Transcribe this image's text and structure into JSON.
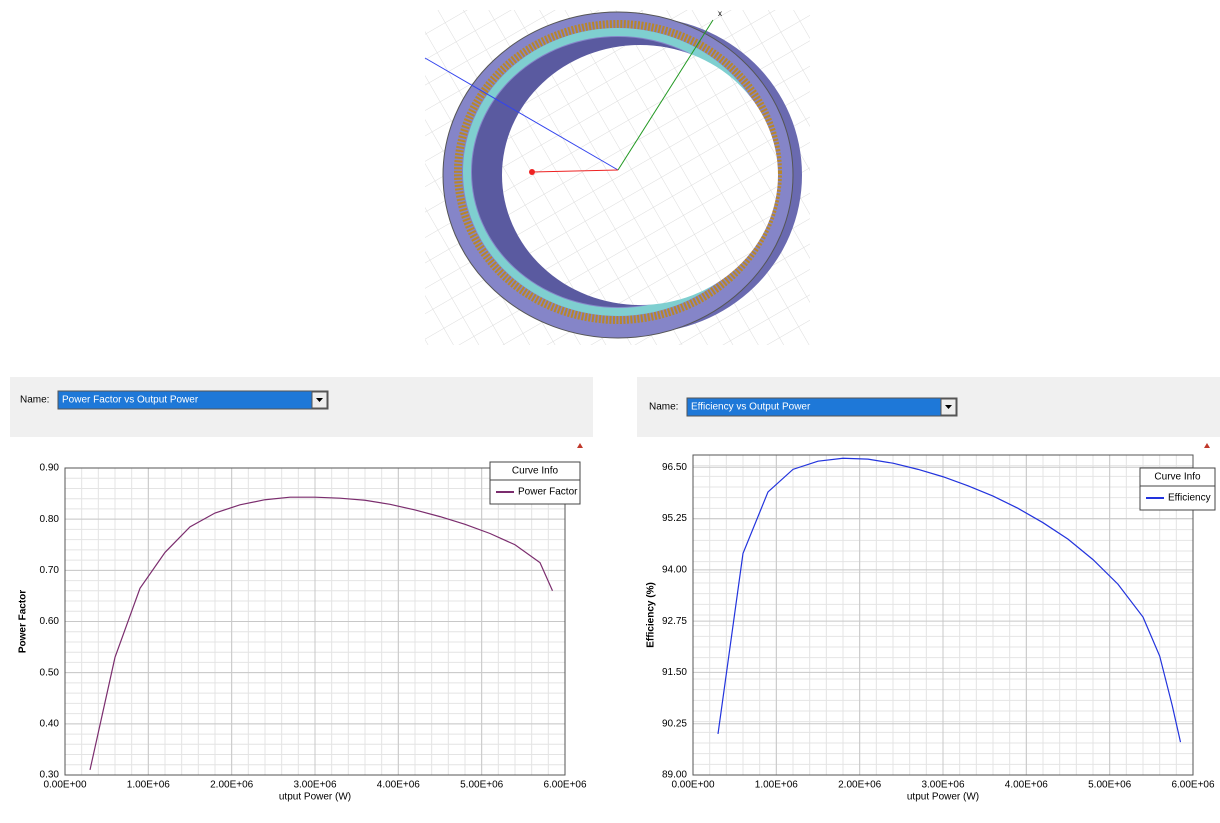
{
  "model": {
    "axis_label": "x"
  },
  "chart_data": [
    {
      "type": "line",
      "name_label": "Name:",
      "report_name": "Power Factor vs Output Power",
      "legend_title": "Curve Info",
      "x_label": "utput Power (W)",
      "y_label": "Power Factor",
      "x": [
        300000,
        600000,
        900000,
        1200000,
        1500000,
        1800000,
        2100000,
        2400000,
        2700000,
        3000000,
        3300000,
        3600000,
        3900000,
        4200000,
        4500000,
        4800000,
        5100000,
        5400000,
        5700000,
        5850000
      ],
      "series": [
        {
          "name": "Power Factor",
          "color": "#7b2d6e",
          "values": [
            0.31,
            0.53,
            0.665,
            0.735,
            0.785,
            0.812,
            0.828,
            0.838,
            0.843,
            0.843,
            0.841,
            0.837,
            0.829,
            0.818,
            0.805,
            0.79,
            0.772,
            0.75,
            0.715,
            0.66
          ]
        }
      ],
      "xlim": [
        0,
        6000000
      ],
      "xticks": [
        {
          "value": 0,
          "label": "0.00E+00"
        },
        {
          "value": 1000000,
          "label": "1.00E+06"
        },
        {
          "value": 2000000,
          "label": "2.00E+06"
        },
        {
          "value": 3000000,
          "label": "3.00E+06"
        },
        {
          "value": 4000000,
          "label": "4.00E+06"
        },
        {
          "value": 5000000,
          "label": "5.00E+06"
        },
        {
          "value": 6000000,
          "label": "6.00E+06"
        }
      ],
      "ylim": [
        0.3,
        0.9
      ],
      "yticks": [
        {
          "value": 0.3,
          "label": "0.30"
        },
        {
          "value": 0.4,
          "label": "0.40"
        },
        {
          "value": 0.5,
          "label": "0.50"
        },
        {
          "value": 0.6,
          "label": "0.60"
        },
        {
          "value": 0.7,
          "label": "0.70"
        },
        {
          "value": 0.8,
          "label": "0.80"
        },
        {
          "value": 0.9,
          "label": "0.90"
        }
      ],
      "grid": true
    },
    {
      "type": "line",
      "name_label": "Name:",
      "report_name": "Efficiency vs Output Power",
      "legend_title": "Curve Info",
      "x_label": "utput Power (W)",
      "y_label": "Efficiency (%)",
      "x": [
        300000,
        600000,
        900000,
        1200000,
        1500000,
        1800000,
        2100000,
        2400000,
        2700000,
        3000000,
        3300000,
        3600000,
        3900000,
        4200000,
        4500000,
        4800000,
        5100000,
        5400000,
        5600000,
        5750000,
        5850000
      ],
      "series": [
        {
          "name": "Efficiency",
          "color": "#2233dd",
          "values": [
            90.0,
            94.4,
            95.9,
            96.45,
            96.65,
            96.72,
            96.7,
            96.6,
            96.45,
            96.27,
            96.05,
            95.8,
            95.5,
            95.15,
            94.75,
            94.25,
            93.65,
            92.85,
            91.9,
            90.7,
            89.8
          ]
        }
      ],
      "xlim": [
        0,
        6000000
      ],
      "xticks": [
        {
          "value": 0,
          "label": "0.00E+00"
        },
        {
          "value": 1000000,
          "label": "1.00E+06"
        },
        {
          "value": 2000000,
          "label": "2.00E+06"
        },
        {
          "value": 3000000,
          "label": "3.00E+06"
        },
        {
          "value": 4000000,
          "label": "4.00E+06"
        },
        {
          "value": 5000000,
          "label": "5.00E+06"
        },
        {
          "value": 6000000,
          "label": "6.00E+06"
        }
      ],
      "ylim": [
        89,
        96.8
      ],
      "yticks": [
        {
          "value": 89,
          "label": "89.00"
        },
        {
          "value": 90.25,
          "label": "90.25"
        },
        {
          "value": 91.5,
          "label": "91.50"
        },
        {
          "value": 92.75,
          "label": "92.75"
        },
        {
          "value": 94,
          "label": "94.00"
        },
        {
          "value": 95.25,
          "label": "95.25"
        },
        {
          "value": 96.5,
          "label": "96.50"
        }
      ],
      "grid": true
    }
  ]
}
